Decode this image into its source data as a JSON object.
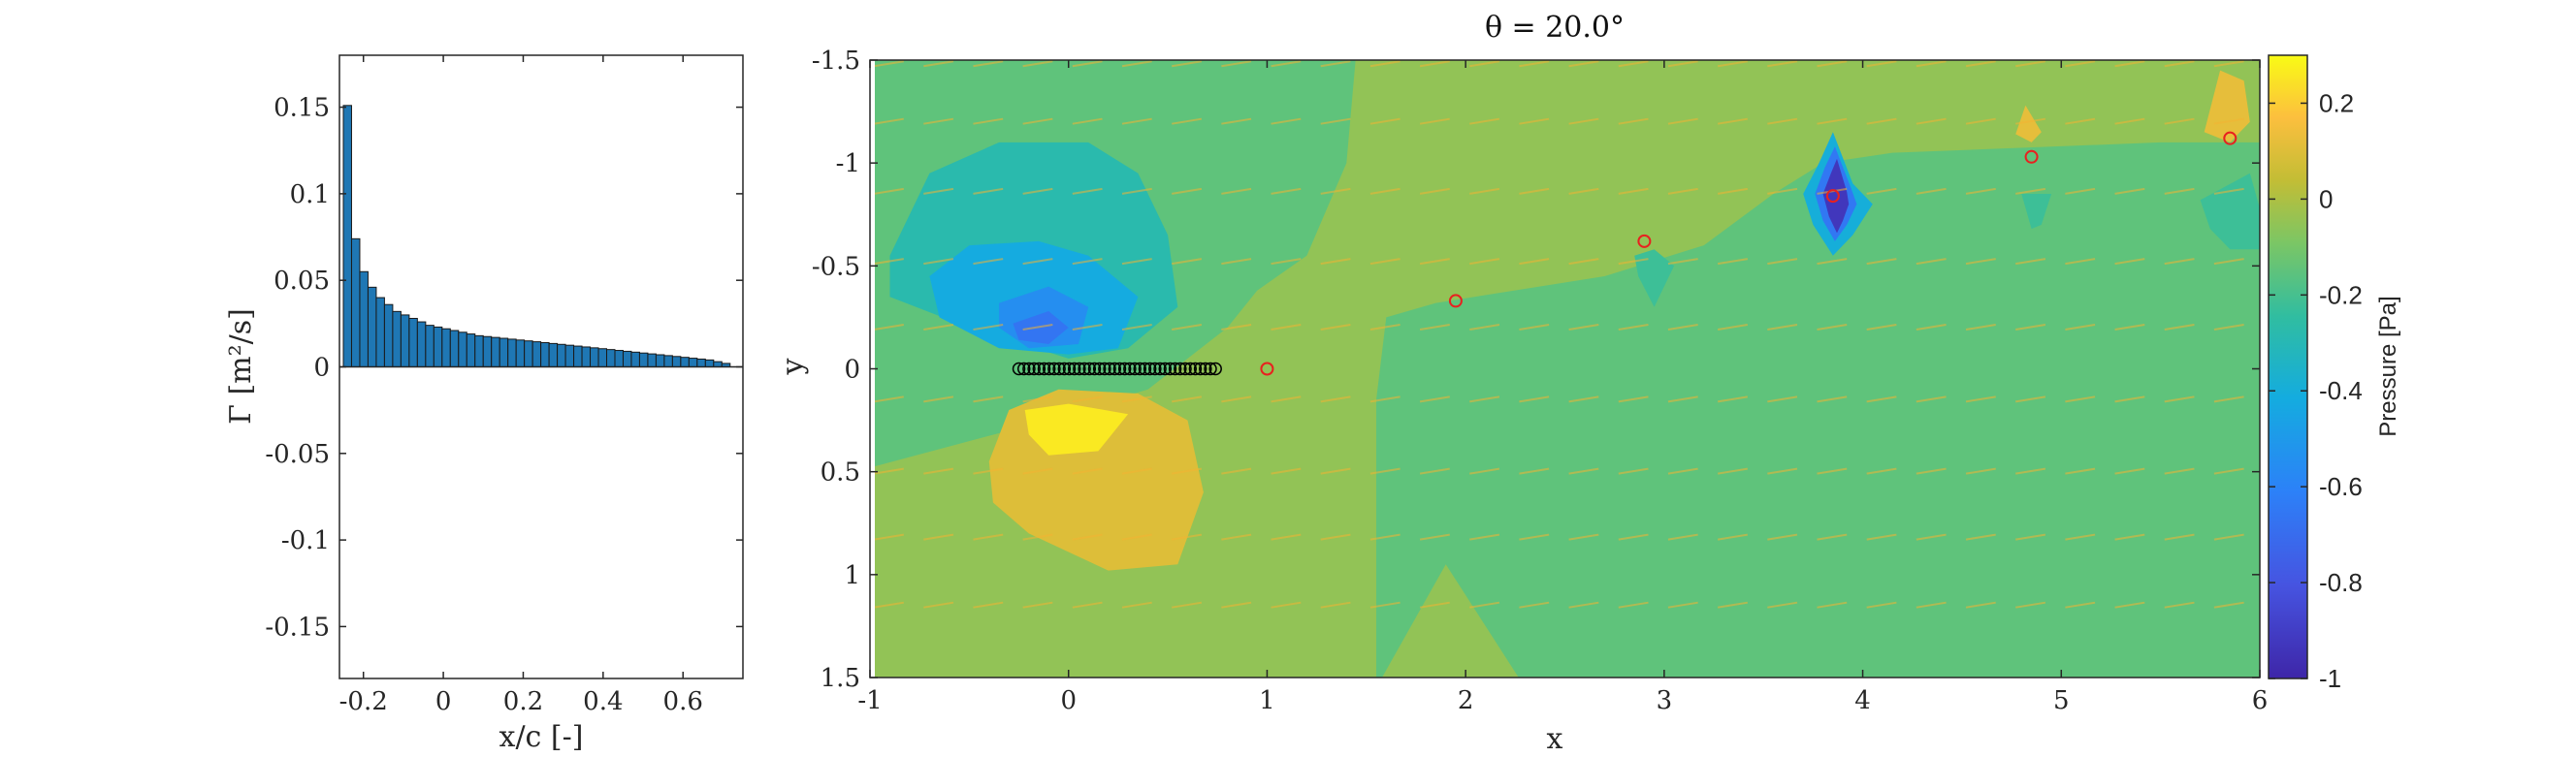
{
  "chart_data": [
    {
      "type": "bar",
      "title": "",
      "xlabel": "x/c [-]",
      "ylabel": "Γ [m²/s]",
      "xlim": [
        -0.26,
        0.75
      ],
      "ylim": [
        -0.18,
        0.18
      ],
      "xticks": [
        -0.2,
        0,
        0.2,
        0.4,
        0.6
      ],
      "xtick_labels": [
        "-0.2",
        "0",
        "0.2",
        "0.4",
        "0.6"
      ],
      "yticks": [
        0.15,
        0.1,
        0.05,
        0,
        -0.05,
        -0.1,
        -0.15
      ],
      "ytick_labels": [
        "0.15",
        "0.1",
        "0.05",
        "0",
        "-0.05",
        "-0.1",
        "-0.15"
      ],
      "bar_color": "#1f77b4",
      "bar_width": 0.0206,
      "x": [
        -0.24,
        -0.2194,
        -0.1988,
        -0.1782,
        -0.1576,
        -0.137,
        -0.1164,
        -0.0958,
        -0.0752,
        -0.0546,
        -0.034,
        -0.0134,
        0.0072,
        0.0278,
        0.0484,
        0.069,
        0.0896,
        0.1102,
        0.1308,
        0.1514,
        0.172,
        0.1926,
        0.2132,
        0.2338,
        0.2544,
        0.275,
        0.2956,
        0.3162,
        0.3368,
        0.3574,
        0.378,
        0.3986,
        0.4192,
        0.4398,
        0.4604,
        0.481,
        0.5016,
        0.5222,
        0.5428,
        0.5634,
        0.584,
        0.6046,
        0.6252,
        0.6458,
        0.6664,
        0.687,
        0.7076
      ],
      "values": [
        0.151,
        0.074,
        0.055,
        0.046,
        0.04,
        0.036,
        0.032,
        0.03,
        0.028,
        0.026,
        0.024,
        0.023,
        0.022,
        0.021,
        0.02,
        0.019,
        0.018,
        0.0175,
        0.017,
        0.0165,
        0.016,
        0.0155,
        0.015,
        0.0145,
        0.014,
        0.0135,
        0.013,
        0.0125,
        0.012,
        0.0115,
        0.011,
        0.0105,
        0.01,
        0.0095,
        0.009,
        0.0085,
        0.008,
        0.0075,
        0.007,
        0.0065,
        0.006,
        0.0055,
        0.005,
        0.0045,
        0.004,
        0.003,
        0.002
      ]
    },
    {
      "type": "heatmap",
      "title": "θ = 20.0°",
      "xlabel": "x",
      "ylabel": "y",
      "xlim": [
        -1,
        6
      ],
      "ylim": [
        1.5,
        -1.5
      ],
      "y_reversed": true,
      "xticks": [
        -1,
        0,
        1,
        2,
        3,
        4,
        5,
        6
      ],
      "xtick_labels": [
        "-1",
        "0",
        "1",
        "2",
        "3",
        "4",
        "5",
        "6"
      ],
      "yticks": [
        -1.5,
        -1,
        -0.5,
        0,
        0.5,
        1,
        1.5
      ],
      "ytick_labels": [
        "-1.5",
        "-1",
        "-0.5",
        "0",
        "0.5",
        "1",
        "1.5"
      ],
      "colorbar": {
        "label": "Pressure [Pa]",
        "range": [
          -1,
          0.3
        ],
        "ticks": [
          0.2,
          0,
          -0.2,
          -0.4,
          -0.6,
          -0.8,
          -1
        ],
        "tick_labels": [
          "0.2",
          "0",
          "-0.2",
          "-0.4",
          "-0.6",
          "-0.8",
          "-1"
        ],
        "colormap": "parula"
      },
      "background_levels": [
        {
          "region": "left-upper",
          "value": -0.15
        },
        {
          "region": "wake-band",
          "value": -0.05
        },
        {
          "region": "right-lower",
          "value": -0.15
        }
      ],
      "regions": [
        {
          "name": "suction-outer",
          "value": -0.28,
          "shape": [
            [
              -0.9,
              -0.55
            ],
            [
              -0.7,
              -0.95
            ],
            [
              -0.35,
              -1.1
            ],
            [
              0.1,
              -1.1
            ],
            [
              0.35,
              -0.95
            ],
            [
              0.5,
              -0.65
            ],
            [
              0.55,
              -0.3
            ],
            [
              0.3,
              -0.1
            ],
            [
              0,
              -0.05
            ],
            [
              -0.5,
              -0.2
            ],
            [
              -0.9,
              -0.35
            ]
          ]
        },
        {
          "name": "suction-mid",
          "value": -0.42,
          "shape": [
            [
              -0.7,
              -0.45
            ],
            [
              -0.5,
              -0.6
            ],
            [
              -0.15,
              -0.62
            ],
            [
              0.1,
              -0.55
            ],
            [
              0.35,
              -0.35
            ],
            [
              0.25,
              -0.1
            ],
            [
              0,
              -0.07
            ],
            [
              -0.35,
              -0.1
            ],
            [
              -0.65,
              -0.25
            ]
          ]
        },
        {
          "name": "suction-inner",
          "value": -0.55,
          "shape": [
            [
              -0.35,
              -0.32
            ],
            [
              -0.1,
              -0.4
            ],
            [
              0.1,
              -0.3
            ],
            [
              0.05,
              -0.12
            ],
            [
              -0.2,
              -0.1
            ],
            [
              -0.35,
              -0.2
            ]
          ]
        },
        {
          "name": "suction-core",
          "value": -0.66,
          "shape": [
            [
              -0.28,
              -0.22
            ],
            [
              -0.1,
              -0.28
            ],
            [
              0,
              -0.2
            ],
            [
              -0.1,
              -0.12
            ],
            [
              -0.25,
              -0.14
            ]
          ]
        },
        {
          "name": "pressure-outer",
          "value": 0.1,
          "shape": [
            [
              -0.4,
              0.45
            ],
            [
              -0.3,
              0.2
            ],
            [
              -0.05,
              0.1
            ],
            [
              0.35,
              0.12
            ],
            [
              0.6,
              0.25
            ],
            [
              0.68,
              0.6
            ],
            [
              0.55,
              0.95
            ],
            [
              0.2,
              0.98
            ],
            [
              -0.2,
              0.8
            ],
            [
              -0.38,
              0.65
            ]
          ]
        },
        {
          "name": "pressure-core",
          "value": 0.26,
          "shape": [
            [
              -0.22,
              0.2
            ],
            [
              0,
              0.17
            ],
            [
              0.3,
              0.22
            ],
            [
              0.15,
              0.4
            ],
            [
              -0.1,
              0.42
            ],
            [
              -0.2,
              0.32
            ]
          ]
        },
        {
          "name": "vortex-3-halo",
          "value": -0.22,
          "shape": [
            [
              2.85,
              -0.55
            ],
            [
              2.95,
              -0.58
            ],
            [
              3.05,
              -0.5
            ],
            [
              2.95,
              -0.3
            ],
            [
              2.87,
              -0.45
            ]
          ]
        },
        {
          "name": "vortex-4-outer",
          "value": -0.4,
          "shape": [
            [
              3.85,
              -1.15
            ],
            [
              3.95,
              -0.9
            ],
            [
              4.05,
              -0.8
            ],
            [
              3.95,
              -0.65
            ],
            [
              3.85,
              -0.55
            ],
            [
              3.75,
              -0.7
            ],
            [
              3.7,
              -0.85
            ],
            [
              3.78,
              -1.0
            ]
          ]
        },
        {
          "name": "vortex-4-mid",
          "value": -0.65,
          "shape": [
            [
              3.86,
              -1.08
            ],
            [
              3.94,
              -0.88
            ],
            [
              3.97,
              -0.8
            ],
            [
              3.92,
              -0.7
            ],
            [
              3.86,
              -0.62
            ],
            [
              3.8,
              -0.72
            ],
            [
              3.76,
              -0.85
            ],
            [
              3.81,
              -0.98
            ]
          ]
        },
        {
          "name": "vortex-4-core",
          "value": -0.93,
          "shape": [
            [
              3.87,
              -1.02
            ],
            [
              3.92,
              -0.86
            ],
            [
              3.93,
              -0.8
            ],
            [
              3.9,
              -0.72
            ],
            [
              3.87,
              -0.66
            ],
            [
              3.83,
              -0.74
            ],
            [
              3.8,
              -0.85
            ],
            [
              3.84,
              -0.95
            ]
          ]
        },
        {
          "name": "vortex-5-low",
          "value": -0.22,
          "shape": [
            [
              4.8,
              -0.85
            ],
            [
              4.95,
              -0.85
            ],
            [
              4.9,
              -0.7
            ],
            [
              4.85,
              -0.68
            ]
          ]
        },
        {
          "name": "vortex-5-high",
          "value": 0.12,
          "shape": [
            [
              4.77,
              -1.14
            ],
            [
              4.82,
              -1.28
            ],
            [
              4.9,
              -1.15
            ],
            [
              4.85,
              -1.1
            ]
          ]
        },
        {
          "name": "vortex-6-low",
          "value": -0.22,
          "shape": [
            [
              5.7,
              -0.82
            ],
            [
              5.95,
              -0.95
            ],
            [
              6,
              -0.78
            ],
            [
              6,
              -0.58
            ],
            [
              5.85,
              -0.58
            ],
            [
              5.75,
              -0.68
            ]
          ]
        },
        {
          "name": "vortex-6-high",
          "value": 0.12,
          "shape": [
            [
              5.72,
              -1.15
            ],
            [
              5.8,
              -1.45
            ],
            [
              5.92,
              -1.4
            ],
            [
              5.95,
              -1.2
            ],
            [
              5.85,
              -1.1
            ]
          ]
        }
      ],
      "streamline_rows": [
        -1.48,
        -1.2,
        -0.86,
        -0.52,
        -0.2,
        0.15,
        0.5,
        0.82,
        1.15
      ],
      "markers": {
        "airfoil_panels": {
          "x_start": -0.25,
          "x_end": 0.74,
          "y": 0,
          "count": 40,
          "color": "#000000"
        },
        "wake_vortices": {
          "color": "#e8211f",
          "points": [
            [
              1,
              0
            ],
            [
              1.95,
              -0.33
            ],
            [
              2.9,
              -0.62
            ],
            [
              3.85,
              -0.84
            ],
            [
              4.85,
              -1.03
            ],
            [
              5.85,
              -1.12
            ]
          ]
        }
      }
    }
  ]
}
